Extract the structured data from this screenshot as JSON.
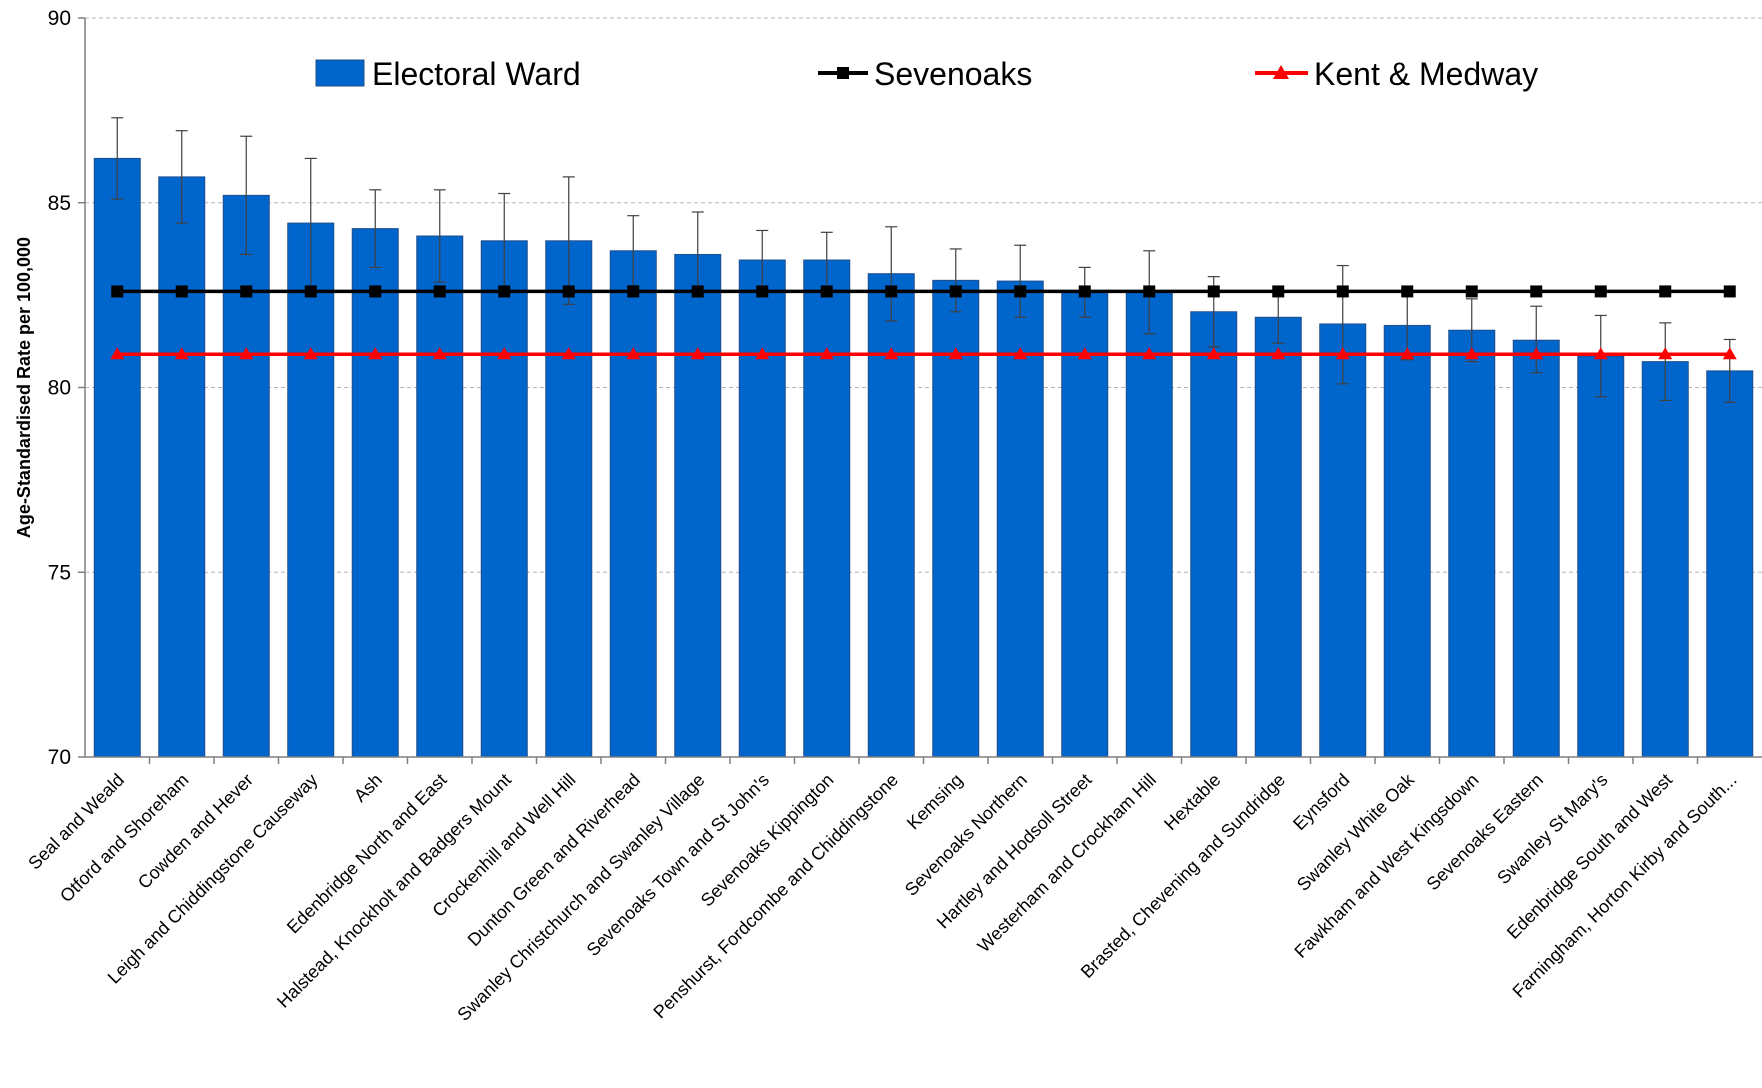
{
  "chart_data": {
    "type": "bar",
    "title": "",
    "xlabel": "",
    "ylabel": "Age-Standardised Rate per 100,000",
    "ylim": [
      70,
      90
    ],
    "yticks": [
      70,
      75,
      80,
      85,
      90
    ],
    "grid": true,
    "legend_position": "top",
    "categories": [
      "Seal and Weald",
      "Otford and Shoreham",
      "Cowden and Hever",
      "Leigh and Chiddingstone Causeway",
      "Ash",
      "Edenbridge North and East",
      "Halstead, Knockholt and Badgers Mount",
      "Crockenhill and Well Hill",
      "Dunton Green and Riverhead",
      "Swanley Christchurch and Swanley Village",
      "Sevenoaks Town and St John's",
      "Sevenoaks Kippington",
      "Penshurst, Fordcombe and Chiddingstone",
      "Kemsing",
      "Sevenoaks Northern",
      "Hartley and Hodsoll Street",
      "Westerham and Crockham Hill",
      "Hextable",
      "Brasted, Chevening and Sundridge",
      "Eynsford",
      "Swanley White Oak",
      "Fawkham and West Kingsdown",
      "Sevenoaks Eastern",
      "Swanley St Mary's",
      "Edenbridge South and West",
      "Farningham, Horton Kirby and South..."
    ],
    "series": [
      {
        "name": "Electoral Ward",
        "kind": "bar",
        "color": "#0066cc",
        "values": [
          86.2,
          85.7,
          85.2,
          84.45,
          84.3,
          84.1,
          83.97,
          83.97,
          83.7,
          83.6,
          83.45,
          83.45,
          83.08,
          82.9,
          82.88,
          82.6,
          82.6,
          82.05,
          81.9,
          81.72,
          81.68,
          81.55,
          81.28,
          80.85,
          80.7,
          80.45
        ],
        "error_upper": [
          87.3,
          86.95,
          86.8,
          86.2,
          85.35,
          85.35,
          85.25,
          85.7,
          84.65,
          84.75,
          84.25,
          84.2,
          84.35,
          83.75,
          83.85,
          83.25,
          83.7,
          83.0,
          82.6,
          83.3,
          82.6,
          82.4,
          82.2,
          81.95,
          81.75,
          81.3
        ],
        "error_lower": [
          85.1,
          84.45,
          83.6,
          82.7,
          83.25,
          82.85,
          82.7,
          82.25,
          82.75,
          82.45,
          82.65,
          82.7,
          81.8,
          82.05,
          81.9,
          81.9,
          81.45,
          81.1,
          81.2,
          80.1,
          80.75,
          80.7,
          80.4,
          79.75,
          79.65,
          79.6
        ]
      },
      {
        "name": "Sevenoaks",
        "kind": "line",
        "marker": "square",
        "color": "#000000",
        "value": 82.6
      },
      {
        "name": "Kent & Medway",
        "kind": "line",
        "marker": "triangle",
        "color": "#ff0000",
        "value": 80.9
      }
    ]
  }
}
